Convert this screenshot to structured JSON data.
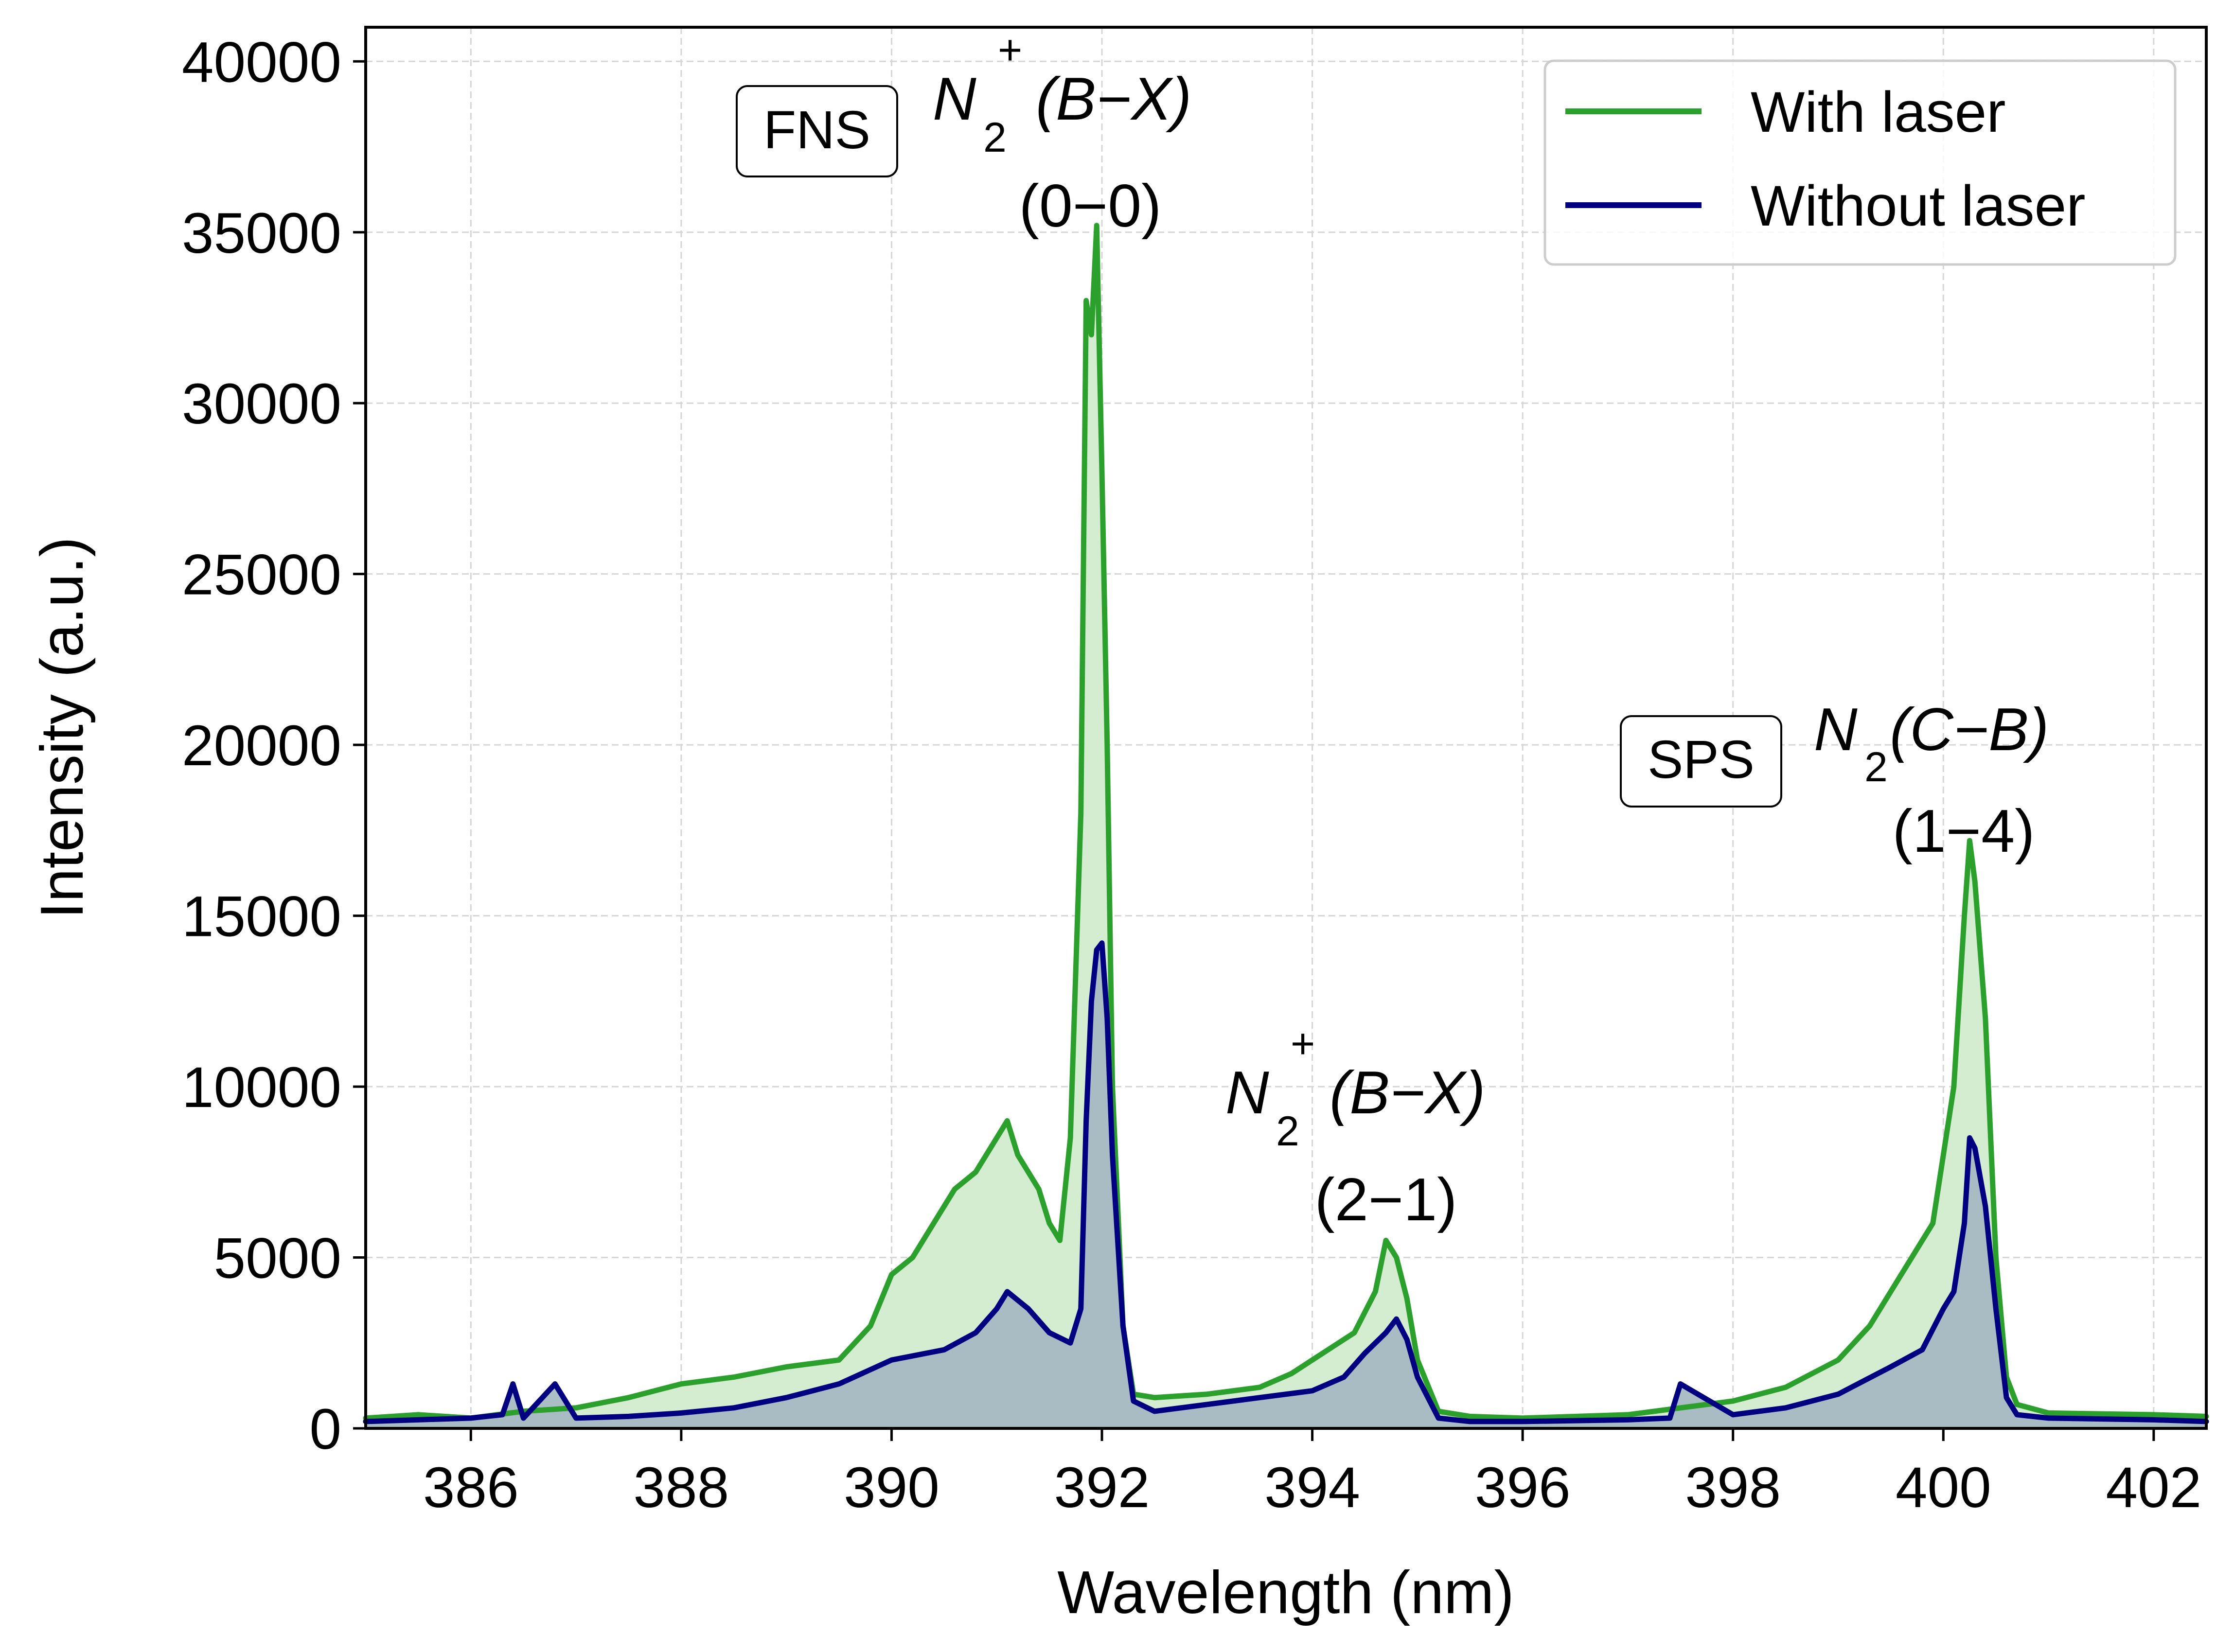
{
  "chart_data": {
    "type": "line",
    "title": "",
    "xlabel": "Wavelength (nm)",
    "ylabel": "Intensity (a.u.)",
    "xlim": [
      385,
      402.5
    ],
    "ylim": [
      0,
      41000
    ],
    "xticks": [
      386,
      388,
      390,
      392,
      394,
      396,
      398,
      400,
      402
    ],
    "yticks": [
      0,
      5000,
      10000,
      15000,
      20000,
      25000,
      30000,
      35000,
      40000
    ],
    "xtick_labels": [
      "386",
      "388",
      "390",
      "392",
      "394",
      "396",
      "398",
      "400",
      "402"
    ],
    "ytick_labels": [
      "0",
      "5000",
      "10000",
      "15000",
      "20000",
      "25000",
      "30000",
      "35000",
      "40000"
    ],
    "grid": true,
    "legend_position": "top-right",
    "colors": {
      "with_laser": "#2ca02c",
      "without_laser": "#000080",
      "with_laser_fill": "#d4edd0",
      "without_laser_fill": "#a7b9c2",
      "grid": "#d6d6d6"
    },
    "series": [
      {
        "name": "With laser",
        "x": [
          385.0,
          385.5,
          386.0,
          386.5,
          387.0,
          387.5,
          388.0,
          388.5,
          389.0,
          389.5,
          389.8,
          390.0,
          390.2,
          390.4,
          390.6,
          390.8,
          391.0,
          391.1,
          391.2,
          391.4,
          391.5,
          391.6,
          391.7,
          391.8,
          391.85,
          391.9,
          391.95,
          392.0,
          392.05,
          392.1,
          392.2,
          392.3,
          392.5,
          393.0,
          393.5,
          393.8,
          394.0,
          394.2,
          394.4,
          394.6,
          394.7,
          394.8,
          394.9,
          395.0,
          395.2,
          395.5,
          396.0,
          397.0,
          398.0,
          398.5,
          399.0,
          399.3,
          399.5,
          399.7,
          399.9,
          400.0,
          400.1,
          400.2,
          400.25,
          400.3,
          400.4,
          400.5,
          400.6,
          400.7,
          401.0,
          402.0,
          402.5
        ],
        "y": [
          300,
          400,
          300,
          500,
          600,
          900,
          1300,
          1500,
          1800,
          2000,
          3000,
          4500,
          5000,
          6000,
          7000,
          7500,
          8500,
          9000,
          8000,
          7000,
          6000,
          5500,
          8500,
          18000,
          33000,
          32000,
          35200,
          28000,
          20000,
          10000,
          3000,
          1000,
          900,
          1000,
          1200,
          1600,
          2000,
          2400,
          2800,
          4000,
          5500,
          5000,
          3800,
          2000,
          500,
          350,
          300,
          400,
          800,
          1200,
          2000,
          3000,
          4000,
          5000,
          6000,
          8000,
          10000,
          15000,
          17200,
          16000,
          12000,
          5000,
          1500,
          700,
          450,
          400,
          350
        ]
      },
      {
        "name": "Without laser",
        "x": [
          385.0,
          385.5,
          386.0,
          386.3,
          386.4,
          386.5,
          386.8,
          387.0,
          387.5,
          388.0,
          388.5,
          389.0,
          389.5,
          390.0,
          390.5,
          390.8,
          391.0,
          391.1,
          391.3,
          391.5,
          391.7,
          391.8,
          391.85,
          391.9,
          391.95,
          392.0,
          392.05,
          392.1,
          392.2,
          392.3,
          392.5,
          393.0,
          393.5,
          394.0,
          394.3,
          394.5,
          394.7,
          394.8,
          394.9,
          395.0,
          395.2,
          395.5,
          396.0,
          397.0,
          397.4,
          397.5,
          398.0,
          398.5,
          399.0,
          399.5,
          399.8,
          400.0,
          400.1,
          400.2,
          400.25,
          400.3,
          400.4,
          400.5,
          400.6,
          400.7,
          401.0,
          402.0,
          402.5
        ],
        "y": [
          200,
          250,
          300,
          400,
          1300,
          300,
          1300,
          300,
          350,
          450,
          600,
          900,
          1300,
          2000,
          2300,
          2800,
          3500,
          4000,
          3500,
          2800,
          2500,
          3500,
          9000,
          12500,
          14000,
          14200,
          12000,
          8000,
          3000,
          800,
          500,
          700,
          900,
          1100,
          1500,
          2200,
          2800,
          3200,
          2600,
          1500,
          300,
          200,
          200,
          250,
          300,
          1300,
          400,
          600,
          1000,
          1800,
          2300,
          3500,
          4000,
          6000,
          8500,
          8200,
          6500,
          3500,
          900,
          400,
          300,
          250,
          200
        ]
      }
    ],
    "annotations": [
      {
        "tag": "FNS",
        "species": "N",
        "subscript": "2",
        "superscript": "+",
        "transition": "(B−X)",
        "band": "(0−0)"
      },
      {
        "species": "N",
        "subscript": "2",
        "superscript": "+",
        "transition": "(B−X)",
        "band": "(2−1)"
      },
      {
        "tag": "SPS",
        "species": "N",
        "subscript": "2",
        "transition": "(C−B)",
        "band": "(1−4)"
      }
    ]
  }
}
